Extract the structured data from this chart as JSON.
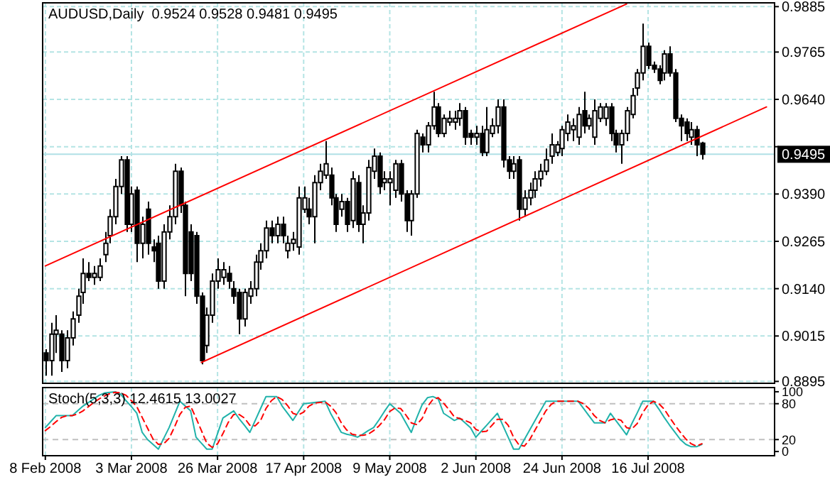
{
  "chart_data": [
    {
      "type": "candlestick",
      "title": "AUDUSD,Daily  0.9524 0.9528 0.9481 0.9495",
      "categories": [
        null,
        null,
        null,
        null,
        null,
        null,
        null,
        null,
        null,
        null,
        null,
        null,
        null,
        null,
        null,
        null,
        null,
        null,
        null,
        null,
        null,
        null,
        null,
        null,
        null,
        null,
        null,
        null,
        null,
        null,
        null,
        null,
        null,
        null,
        null,
        null,
        null,
        null,
        null,
        null,
        null,
        null,
        null,
        null,
        null,
        null,
        null,
        null,
        null,
        null,
        null,
        null,
        null,
        null,
        null,
        null,
        null,
        null,
        null,
        null,
        null,
        null,
        null,
        null,
        null,
        null,
        null,
        null,
        null,
        null,
        null,
        null,
        null,
        null,
        null,
        null,
        null,
        null,
        null,
        null,
        null,
        null,
        null,
        null,
        null,
        null,
        null,
        null,
        null,
        null,
        null,
        null,
        null,
        null,
        null,
        null,
        null,
        null,
        null,
        null,
        null,
        null,
        null,
        null,
        null,
        null,
        null,
        null,
        null,
        null,
        null,
        null,
        null,
        null,
        null,
        null,
        null,
        null,
        null,
        null,
        null,
        null,
        null,
        null,
        null,
        null,
        null,
        null,
        null,
        null,
        null,
        null,
        null,
        null,
        null,
        null
      ],
      "ohlc": [
        [
          0.897,
          0.898,
          0.891,
          0.895
        ],
        [
          0.895,
          0.905,
          0.891,
          0.902
        ],
        [
          0.902,
          0.907,
          0.897,
          0.903
        ],
        [
          0.902,
          0.903,
          0.892,
          0.895
        ],
        [
          0.895,
          0.903,
          0.893,
          0.901
        ],
        [
          0.901,
          0.908,
          0.899,
          0.906
        ],
        [
          0.907,
          0.914,
          0.905,
          0.912
        ],
        [
          0.913,
          0.922,
          0.91,
          0.918
        ],
        [
          0.918,
          0.921,
          0.916,
          0.917
        ],
        [
          0.917,
          0.92,
          0.915,
          0.918
        ],
        [
          0.917,
          0.922,
          0.916,
          0.92
        ],
        [
          0.923,
          0.929,
          0.921,
          0.926
        ],
        [
          0.928,
          0.935,
          0.926,
          0.933
        ],
        [
          0.933,
          0.943,
          0.931,
          0.941
        ],
        [
          0.941,
          0.949,
          0.939,
          0.948
        ],
        [
          0.948,
          0.949,
          0.929,
          0.931
        ],
        [
          0.931,
          0.941,
          0.929,
          0.939
        ],
        [
          0.94,
          0.941,
          0.921,
          0.926
        ],
        [
          0.926,
          0.933,
          0.922,
          0.931
        ],
        [
          0.935,
          0.937,
          0.923,
          0.926
        ],
        [
          0.925,
          0.927,
          0.921,
          0.924
        ],
        [
          0.926,
          0.928,
          0.914,
          0.916
        ],
        [
          0.916,
          0.931,
          0.914,
          0.929
        ],
        [
          0.929,
          0.936,
          0.927,
          0.933
        ],
        [
          0.933,
          0.947,
          0.931,
          0.945
        ],
        [
          0.945,
          0.946,
          0.934,
          0.936
        ],
        [
          0.936,
          0.937,
          0.912,
          0.918
        ],
        [
          0.929,
          0.931,
          0.916,
          0.918
        ],
        [
          0.928,
          0.929,
          0.91,
          0.912
        ],
        [
          0.912,
          0.913,
          0.894,
          0.895
        ],
        [
          0.899,
          0.909,
          0.897,
          0.907
        ],
        [
          0.907,
          0.918,
          0.905,
          0.916
        ],
        [
          0.916,
          0.922,
          0.914,
          0.919
        ],
        [
          0.917,
          0.921,
          0.915,
          0.919
        ],
        [
          0.918,
          0.92,
          0.914,
          0.916
        ],
        [
          0.914,
          0.916,
          0.91,
          0.912
        ],
        [
          0.913,
          0.914,
          0.902,
          0.906
        ],
        [
          0.906,
          0.914,
          0.904,
          0.913
        ],
        [
          0.912,
          0.916,
          0.91,
          0.914
        ],
        [
          0.914,
          0.923,
          0.912,
          0.921
        ],
        [
          0.921,
          0.926,
          0.919,
          0.924
        ],
        [
          0.924,
          0.932,
          0.922,
          0.93
        ],
        [
          0.93,
          0.932,
          0.926,
          0.928
        ],
        [
          0.928,
          0.933,
          0.926,
          0.931
        ],
        [
          0.931,
          0.933,
          0.926,
          0.928
        ],
        [
          0.924,
          0.928,
          0.922,
          0.926
        ],
        [
          0.926,
          0.929,
          0.924,
          0.927
        ],
        [
          0.925,
          0.941,
          0.923,
          0.938
        ],
        [
          0.935,
          0.941,
          0.934,
          0.938
        ],
        [
          0.935,
          0.938,
          0.931,
          0.933
        ],
        [
          0.933,
          0.944,
          0.926,
          0.942
        ],
        [
          0.942,
          0.947,
          0.94,
          0.945
        ],
        [
          0.944,
          0.953,
          0.943,
          0.947
        ],
        [
          0.944,
          0.946,
          0.936,
          0.938
        ],
        [
          0.938,
          0.939,
          0.929,
          0.931
        ],
        [
          0.935,
          0.939,
          0.933,
          0.937
        ],
        [
          0.937,
          0.938,
          0.929,
          0.931
        ],
        [
          0.932,
          0.945,
          0.93,
          0.943
        ],
        [
          0.942,
          0.944,
          0.929,
          0.931
        ],
        [
          0.931,
          0.936,
          0.926,
          0.934
        ],
        [
          0.934,
          0.948,
          0.932,
          0.946
        ],
        [
          0.945,
          0.951,
          0.943,
          0.949
        ],
        [
          0.949,
          0.95,
          0.939,
          0.941
        ],
        [
          0.942,
          0.945,
          0.94,
          0.943
        ],
        [
          0.942,
          0.945,
          0.936,
          0.943
        ],
        [
          0.94,
          0.948,
          0.938,
          0.947
        ],
        [
          0.947,
          0.948,
          0.937,
          0.939
        ],
        [
          0.939,
          0.94,
          0.929,
          0.932
        ],
        [
          0.932,
          0.94,
          0.928,
          0.939
        ],
        [
          0.939,
          0.956,
          0.938,
          0.955
        ],
        [
          0.954,
          0.955,
          0.95,
          0.952
        ],
        [
          0.952,
          0.958,
          0.95,
          0.957
        ],
        [
          0.957,
          0.966,
          0.956,
          0.962
        ],
        [
          0.962,
          0.963,
          0.954,
          0.955
        ],
        [
          0.955,
          0.96,
          0.954,
          0.959
        ],
        [
          0.958,
          0.961,
          0.957,
          0.959
        ],
        [
          0.958,
          0.961,
          0.956,
          0.959
        ],
        [
          0.959,
          0.963,
          0.957,
          0.961
        ],
        [
          0.961,
          0.962,
          0.952,
          0.954
        ],
        [
          0.955,
          0.956,
          0.952,
          0.954
        ],
        [
          0.954,
          0.957,
          0.952,
          0.955
        ],
        [
          0.955,
          0.957,
          0.949,
          0.95
        ],
        [
          0.95,
          0.962,
          0.949,
          0.956
        ],
        [
          0.955,
          0.959,
          0.954,
          0.957
        ],
        [
          0.957,
          0.964,
          0.955,
          0.962
        ],
        [
          0.962,
          0.964,
          0.946,
          0.948
        ],
        [
          0.948,
          0.949,
          0.943,
          0.945
        ],
        [
          0.945,
          0.949,
          0.943,
          0.947
        ],
        [
          0.948,
          0.949,
          0.932,
          0.935
        ],
        [
          0.935,
          0.94,
          0.933,
          0.938
        ],
        [
          0.938,
          0.942,
          0.936,
          0.94
        ],
        [
          0.94,
          0.945,
          0.938,
          0.943
        ],
        [
          0.943,
          0.947,
          0.941,
          0.945
        ],
        [
          0.945,
          0.951,
          0.944,
          0.948
        ],
        [
          0.949,
          0.955,
          0.947,
          0.952
        ],
        [
          0.95,
          0.953,
          0.949,
          0.952
        ],
        [
          0.951,
          0.957,
          0.949,
          0.956
        ],
        [
          0.955,
          0.96,
          0.953,
          0.958
        ],
        [
          0.956,
          0.959,
          0.953,
          0.957
        ],
        [
          0.954,
          0.962,
          0.952,
          0.96
        ],
        [
          0.961,
          0.966,
          0.955,
          0.957
        ],
        [
          0.957,
          0.96,
          0.956,
          0.959
        ],
        [
          0.954,
          0.964,
          0.952,
          0.961
        ],
        [
          0.959,
          0.963,
          0.958,
          0.962
        ],
        [
          0.959,
          0.963,
          0.957,
          0.962
        ],
        [
          0.962,
          0.963,
          0.953,
          0.955
        ],
        [
          0.955,
          0.956,
          0.95,
          0.952
        ],
        [
          0.952,
          0.956,
          0.947,
          0.955
        ],
        [
          0.955,
          0.962,
          0.953,
          0.961
        ],
        [
          0.96,
          0.967,
          0.959,
          0.965
        ],
        [
          0.967,
          0.972,
          0.965,
          0.971
        ],
        [
          0.971,
          0.984,
          0.969,
          0.978
        ],
        [
          0.978,
          0.979,
          0.972,
          0.973
        ],
        [
          0.973,
          0.974,
          0.971,
          0.972
        ],
        [
          0.972,
          0.973,
          0.968,
          0.969
        ],
        [
          0.971,
          0.977,
          0.969,
          0.976
        ],
        [
          0.976,
          0.978,
          0.97,
          0.971
        ],
        [
          0.971,
          0.972,
          0.958,
          0.959
        ],
        [
          0.959,
          0.96,
          0.953,
          0.957
        ],
        [
          0.958,
          0.959,
          0.953,
          0.955
        ],
        [
          0.954,
          0.958,
          0.952,
          0.956
        ],
        [
          0.956,
          0.957,
          0.949,
          0.952
        ],
        [
          0.9524,
          0.9528,
          0.9481,
          0.9495
        ],
        null,
        null,
        null,
        null,
        null,
        null,
        null,
        null,
        null,
        null,
        null,
        null,
        null
      ],
      "series": [
        {
          "type": "line",
          "color": "#ff0000",
          "values": [
            0.92,
            null,
            null,
            null,
            null,
            null,
            null,
            null,
            null,
            null,
            null,
            null,
            null,
            null,
            null,
            null,
            null,
            null,
            null,
            null,
            null,
            null,
            null,
            null,
            null,
            null,
            null,
            null,
            null,
            null,
            null,
            null,
            null,
            null,
            null,
            null,
            null,
            null,
            null,
            null,
            null,
            null,
            null,
            null,
            null,
            null,
            null,
            null,
            null,
            null,
            null,
            null,
            null,
            null,
            null,
            null,
            null,
            null,
            null,
            null,
            null,
            null,
            null,
            null,
            null,
            null,
            null,
            null,
            null,
            null,
            null,
            null,
            null,
            null,
            null,
            null,
            null,
            null,
            null,
            null,
            null,
            null,
            null,
            null,
            null,
            null,
            null,
            null,
            null,
            null,
            null,
            null,
            null,
            null,
            null,
            null,
            null,
            null,
            null,
            null,
            null,
            null,
            null,
            null,
            null,
            null,
            null,
            null,
            0.9892,
            null,
            null,
            null,
            null,
            null,
            null,
            null,
            null,
            null,
            null,
            null,
            null,
            null,
            null,
            null,
            null,
            null,
            null,
            null,
            null,
            null,
            null,
            null,
            null,
            null,
            null,
            null
          ]
        },
        {
          "type": "line",
          "color": "#ff0000",
          "values": [
            null,
            null,
            null,
            null,
            null,
            null,
            null,
            null,
            null,
            null,
            null,
            null,
            null,
            null,
            null,
            null,
            null,
            null,
            null,
            null,
            null,
            null,
            null,
            null,
            null,
            null,
            null,
            null,
            null,
            0.8945,
            null,
            null,
            null,
            null,
            null,
            null,
            null,
            null,
            null,
            null,
            null,
            null,
            null,
            null,
            null,
            null,
            null,
            null,
            null,
            null,
            null,
            null,
            null,
            null,
            null,
            null,
            null,
            null,
            null,
            null,
            null,
            null,
            null,
            null,
            null,
            null,
            null,
            null,
            null,
            null,
            null,
            null,
            null,
            null,
            null,
            null,
            null,
            null,
            null,
            null,
            null,
            null,
            null,
            null,
            null,
            null,
            null,
            null,
            null,
            null,
            null,
            null,
            null,
            null,
            null,
            null,
            null,
            null,
            null,
            null,
            null,
            null,
            null,
            null,
            null,
            null,
            null,
            null,
            null,
            null,
            null,
            null,
            null,
            null,
            null,
            null,
            null,
            null,
            null,
            null,
            null,
            null,
            null,
            null,
            null,
            null,
            null,
            null,
            null,
            null,
            null,
            null,
            null,
            null,
            0.962,
            null
          ]
        }
      ],
      "ylim": [
        0.889,
        0.9895
      ],
      "yticks": [
        0.8895,
        0.9015,
        {
          "value": 0.914,
          "label": "0.9140"
        },
        0.9265,
        {
          "value": 0.939,
          "label": "0.9390"
        },
        {
          "value": 0.9515,
          "label": null
        },
        {
          "value": 0.964,
          "label": "0.9640"
        },
        0.9765,
        0.9885
      ],
      "grid": true,
      "tick_labels": "y",
      "ref_lines": [
        {
          "axis": "y",
          "value": 0.9495,
          "label": "0.9495",
          "color": "#b0e0e6"
        }
      ]
    },
    {
      "type": "line",
      "title": "Stoch(5,3,3) 12.4615 13.0027",
      "categories": [
        "8 Feb 2008",
        null,
        null,
        null,
        null,
        null,
        null,
        null,
        null,
        null,
        null,
        null,
        null,
        null,
        null,
        null,
        "3 Mar 2008",
        null,
        null,
        null,
        null,
        null,
        null,
        null,
        null,
        null,
        null,
        null,
        null,
        null,
        null,
        null,
        "26 Mar 2008",
        null,
        null,
        null,
        null,
        null,
        null,
        null,
        null,
        null,
        null,
        null,
        null,
        null,
        null,
        null,
        "17 Apr 2008",
        null,
        null,
        null,
        null,
        null,
        null,
        null,
        null,
        null,
        null,
        null,
        null,
        null,
        null,
        null,
        "9 May 2008",
        null,
        null,
        null,
        null,
        null,
        null,
        null,
        null,
        null,
        null,
        null,
        null,
        null,
        null,
        null,
        "2 Jun 2008",
        null,
        null,
        null,
        null,
        null,
        null,
        null,
        null,
        null,
        null,
        null,
        null,
        null,
        null,
        null,
        "24 Jun 2008",
        null,
        null,
        null,
        null,
        null,
        null,
        null,
        null,
        null,
        null,
        null,
        null,
        null,
        null,
        null,
        "16 Jul 2008",
        null,
        null,
        null,
        null,
        null,
        null,
        null,
        null,
        null,
        null,
        null,
        null,
        null,
        null,
        null,
        null,
        null,
        null,
        null,
        null,
        null,
        null,
        null
      ],
      "series": [
        {
          "color": "#20b2aa",
          "line_style": "solid",
          "values": [
            40,
            50,
            60,
            60,
            60,
            60,
            68,
            76,
            82,
            88,
            94,
            98,
            99,
            100,
            96,
            85,
            75,
            64,
            32,
            20,
            12,
            4,
            22,
            40,
            62,
            84,
            76,
            68,
            24,
            14,
            4,
            4,
            30,
            56,
            62,
            68,
            55,
            44,
            32,
            52,
            72,
            92,
            92,
            92,
            76,
            64,
            52,
            66,
            80,
            81,
            82,
            83,
            84,
            64,
            48,
            32,
            29,
            27,
            24,
            29,
            35,
            40,
            53,
            67,
            80,
            72,
            64,
            48,
            32,
            56,
            78,
            90,
            92,
            88,
            64,
            58,
            52,
            56,
            48,
            40,
            24,
            34,
            44,
            54,
            64,
            44,
            24,
            4,
            4,
            20,
            36,
            52,
            68,
            84,
            84,
            84,
            84,
            84,
            84,
            84,
            72,
            60,
            48,
            48,
            48,
            64,
            52,
            40,
            28,
            47,
            65,
            84,
            84,
            84,
            71,
            57,
            44,
            32,
            20,
            12,
            8,
            8,
            12,
            null,
            null,
            null,
            null,
            null,
            null,
            null,
            null,
            null,
            null,
            null,
            null,
            null
          ]
        },
        {
          "color": "#ff0000",
          "line_style": "dashed",
          "values": [
            35,
            42,
            50,
            57,
            60,
            60,
            63,
            68,
            75,
            82,
            88,
            93,
            97,
            99,
            98,
            94,
            85,
            75,
            57,
            39,
            21,
            12,
            13,
            22,
            41,
            62,
            74,
            76,
            56,
            35,
            14,
            7,
            13,
            30,
            49,
            62,
            62,
            56,
            44,
            43,
            52,
            72,
            85,
            92,
            87,
            77,
            64,
            61,
            66,
            76,
            81,
            82,
            83,
            76,
            65,
            48,
            36,
            29,
            27,
            27,
            29,
            35,
            43,
            53,
            67,
            73,
            72,
            61,
            48,
            45,
            55,
            75,
            87,
            90,
            81,
            70,
            58,
            55,
            52,
            48,
            37,
            33,
            34,
            44,
            54,
            54,
            44,
            24,
            11,
            9,
            20,
            36,
            52,
            68,
            79,
            84,
            84,
            84,
            84,
            84,
            80,
            72,
            60,
            52,
            48,
            53,
            55,
            52,
            40,
            38,
            47,
            65,
            78,
            84,
            80,
            71,
            57,
            44,
            32,
            21,
            13,
            9,
            13,
            null,
            null,
            null,
            null,
            null,
            null,
            null,
            null,
            null,
            null,
            null,
            null,
            null
          ]
        }
      ],
      "ylim": [
        -7,
        107
      ],
      "yticks": [
        0,
        20,
        80,
        100
      ],
      "grid": "x",
      "ref_lines": [
        {
          "axis": "y",
          "value": 20,
          "color": "#c0c0c0",
          "line_style": "dashed"
        },
        {
          "axis": "y",
          "value": 80,
          "color": "#c0c0c0",
          "line_style": "dashed"
        }
      ]
    }
  ]
}
